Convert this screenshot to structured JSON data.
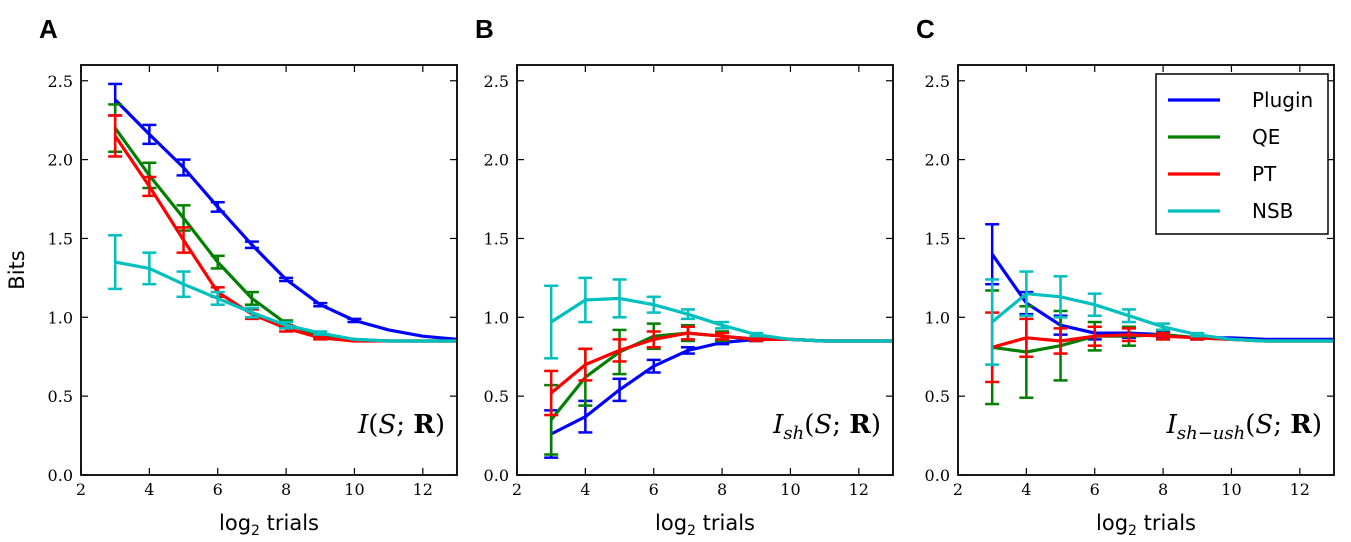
{
  "chart_data": [
    {
      "panel": "A",
      "type": "line",
      "annotation": "I(S;R)",
      "xlabel": "log2 trials",
      "ylabel": "Bits",
      "xlim": [
        2,
        13
      ],
      "ylim": [
        0,
        2.6
      ],
      "x_ticks": [
        "2",
        "4",
        "6",
        "8",
        "10",
        "12"
      ],
      "y_ticks": [
        "0.0",
        "0.5",
        "1.0",
        "1.5",
        "2.0",
        "2.5"
      ],
      "grid": false,
      "series": [
        {
          "name": "Plugin",
          "color": "#0000ff",
          "x": [
            3,
            4,
            5,
            6,
            7,
            8,
            9,
            10,
            11,
            12,
            13
          ],
          "values": [
            2.38,
            2.16,
            1.95,
            1.7,
            1.46,
            1.24,
            1.08,
            0.98,
            0.92,
            0.88,
            0.86
          ],
          "err": [
            0.1,
            0.06,
            0.05,
            0.03,
            0.02,
            0.01,
            0.01,
            0.01,
            0,
            0,
            0
          ]
        },
        {
          "name": "QE",
          "color": "#008000",
          "x": [
            3,
            4,
            5,
            6,
            7,
            8,
            9,
            10,
            11,
            12,
            13
          ],
          "values": [
            2.2,
            1.9,
            1.63,
            1.35,
            1.12,
            0.96,
            0.88,
            0.86,
            0.85,
            0.85,
            0.85
          ],
          "err": [
            0.15,
            0.08,
            0.08,
            0.04,
            0.04,
            0.02,
            0.01,
            0,
            0,
            0,
            0
          ]
        },
        {
          "name": "PT",
          "color": "#ff0000",
          "x": [
            3,
            4,
            5,
            6,
            7,
            8,
            9,
            10,
            11,
            12,
            13
          ],
          "values": [
            2.15,
            1.83,
            1.49,
            1.16,
            1.02,
            0.93,
            0.87,
            0.85,
            0.85,
            0.85,
            0.85
          ],
          "err": [
            0.13,
            0.06,
            0.08,
            0.03,
            0.03,
            0.02,
            0.01,
            0,
            0,
            0,
            0
          ]
        },
        {
          "name": "NSB",
          "color": "#00bfbf",
          "x": [
            3,
            4,
            5,
            6,
            7,
            8,
            9,
            10,
            11,
            12,
            13
          ],
          "values": [
            1.35,
            1.31,
            1.21,
            1.12,
            1.03,
            0.95,
            0.9,
            0.86,
            0.85,
            0.85,
            0.85
          ],
          "err": [
            0.17,
            0.1,
            0.08,
            0.04,
            0.03,
            0.02,
            0.01,
            0,
            0,
            0,
            0
          ]
        }
      ]
    },
    {
      "panel": "B",
      "type": "line",
      "annotation": "I_sh(S;R)",
      "xlabel": "log2 trials",
      "ylabel": "",
      "xlim": [
        2,
        13
      ],
      "ylim": [
        0,
        2.6
      ],
      "x_ticks": [
        "2",
        "4",
        "6",
        "8",
        "10",
        "12"
      ],
      "y_ticks": [
        "0.0",
        "0.5",
        "1.0",
        "1.5",
        "2.0",
        "2.5"
      ],
      "grid": false,
      "series": [
        {
          "name": "Plugin",
          "color": "#0000ff",
          "x": [
            3,
            4,
            5,
            6,
            7,
            8,
            9,
            10,
            11,
            12,
            13
          ],
          "values": [
            0.26,
            0.37,
            0.54,
            0.69,
            0.79,
            0.84,
            0.86,
            0.86,
            0.85,
            0.85,
            0.85
          ],
          "err": [
            0.15,
            0.1,
            0.07,
            0.04,
            0.02,
            0.01,
            0.01,
            0,
            0,
            0,
            0
          ]
        },
        {
          "name": "QE",
          "color": "#008000",
          "x": [
            3,
            4,
            5,
            6,
            7,
            8,
            9,
            10,
            11,
            12,
            13
          ],
          "values": [
            0.35,
            0.62,
            0.78,
            0.88,
            0.9,
            0.88,
            0.86,
            0.86,
            0.85,
            0.85,
            0.85
          ],
          "err": [
            0.22,
            0.18,
            0.14,
            0.08,
            0.05,
            0.03,
            0.01,
            0,
            0,
            0,
            0
          ]
        },
        {
          "name": "PT",
          "color": "#ff0000",
          "x": [
            3,
            4,
            5,
            6,
            7,
            8,
            9,
            10,
            11,
            12,
            13
          ],
          "values": [
            0.52,
            0.7,
            0.79,
            0.86,
            0.9,
            0.88,
            0.86,
            0.86,
            0.85,
            0.85,
            0.85
          ],
          "err": [
            0.14,
            0.1,
            0.07,
            0.05,
            0.04,
            0.02,
            0.01,
            0,
            0,
            0,
            0
          ]
        },
        {
          "name": "NSB",
          "color": "#00bfbf",
          "x": [
            3,
            4,
            5,
            6,
            7,
            8,
            9,
            10,
            11,
            12,
            13
          ],
          "values": [
            0.97,
            1.11,
            1.12,
            1.08,
            1.02,
            0.95,
            0.89,
            0.86,
            0.85,
            0.85,
            0.85
          ],
          "err": [
            0.23,
            0.14,
            0.12,
            0.05,
            0.03,
            0.02,
            0.01,
            0,
            0,
            0,
            0
          ]
        }
      ]
    },
    {
      "panel": "C",
      "type": "line",
      "annotation": "I_sh-ush(S;R)",
      "xlabel": "log2 trials",
      "ylabel": "",
      "xlim": [
        2,
        13
      ],
      "ylim": [
        0,
        2.6
      ],
      "x_ticks": [
        "2",
        "4",
        "6",
        "8",
        "10",
        "12"
      ],
      "y_ticks": [
        "0.0",
        "0.5",
        "1.0",
        "1.5",
        "2.0",
        "2.5"
      ],
      "grid": false,
      "legend": {
        "placement": "top-right",
        "entries": [
          "Plugin",
          "QE",
          "PT",
          "NSB"
        ]
      },
      "series": [
        {
          "name": "Plugin",
          "color": "#0000ff",
          "x": [
            3,
            4,
            5,
            6,
            7,
            8,
            9,
            10,
            11,
            12,
            13
          ],
          "values": [
            1.4,
            1.09,
            0.95,
            0.9,
            0.9,
            0.89,
            0.87,
            0.87,
            0.86,
            0.86,
            0.86
          ],
          "err": [
            0.19,
            0.07,
            0.06,
            0.04,
            0.03,
            0.02,
            0.01,
            0,
            0,
            0,
            0
          ]
        },
        {
          "name": "QE",
          "color": "#008000",
          "x": [
            3,
            4,
            5,
            6,
            7,
            8,
            9,
            10,
            11,
            12,
            13
          ],
          "values": [
            0.81,
            0.78,
            0.82,
            0.88,
            0.88,
            0.89,
            0.87,
            0.86,
            0.85,
            0.85,
            0.85
          ],
          "err": [
            0.36,
            0.29,
            0.22,
            0.09,
            0.06,
            0.03,
            0.01,
            0,
            0,
            0,
            0
          ]
        },
        {
          "name": "PT",
          "color": "#ff0000",
          "x": [
            3,
            4,
            5,
            6,
            7,
            8,
            9,
            10,
            11,
            12,
            13
          ],
          "values": [
            0.81,
            0.87,
            0.85,
            0.88,
            0.89,
            0.88,
            0.87,
            0.86,
            0.85,
            0.85,
            0.85
          ],
          "err": [
            0.22,
            0.12,
            0.08,
            0.06,
            0.04,
            0.02,
            0.01,
            0,
            0,
            0,
            0
          ]
        },
        {
          "name": "NSB",
          "color": "#00bfbf",
          "x": [
            3,
            4,
            5,
            6,
            7,
            8,
            9,
            10,
            11,
            12,
            13
          ],
          "values": [
            0.97,
            1.15,
            1.13,
            1.08,
            1.01,
            0.94,
            0.89,
            0.86,
            0.85,
            0.85,
            0.85
          ],
          "err": [
            0.27,
            0.14,
            0.13,
            0.07,
            0.04,
            0.02,
            0.01,
            0,
            0,
            0,
            0
          ]
        }
      ]
    }
  ]
}
